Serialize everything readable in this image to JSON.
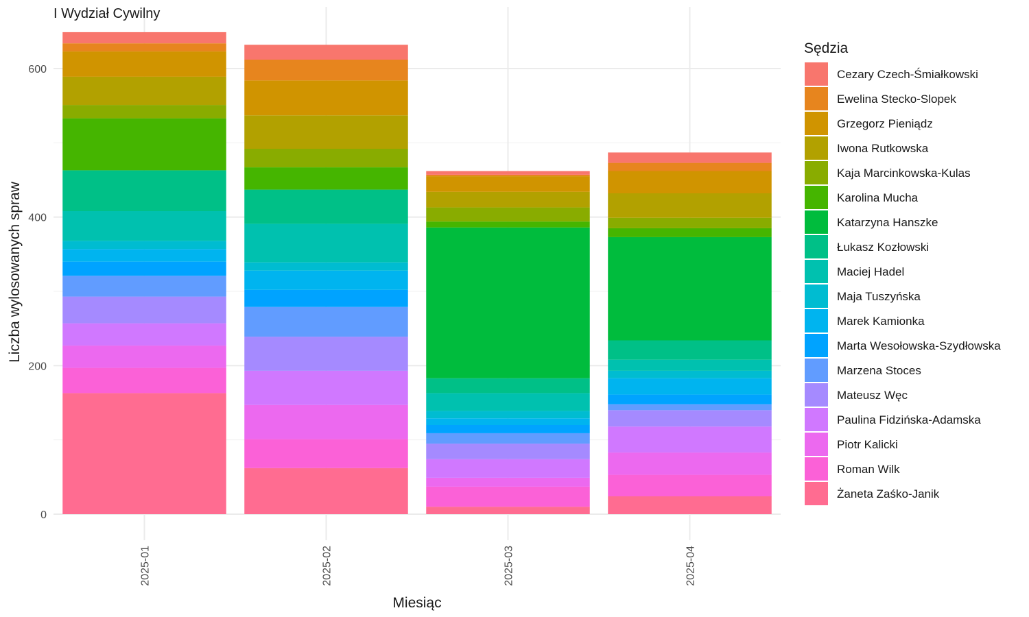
{
  "chart_data": {
    "type": "bar",
    "stacked": true,
    "title": "I Wydział Cywilny",
    "xlabel": "Miesiąc",
    "ylabel": "Liczba wylosowanych spraw",
    "ylim": [
      0,
      650
    ],
    "yticks": [
      0,
      200,
      400,
      600
    ],
    "grid": true,
    "legend_title": "Sędzia",
    "legend_position": "right",
    "categories": [
      "2025-01",
      "2025-02",
      "2025-03",
      "2025-04"
    ],
    "series": [
      {
        "name": "Cezary Czech-Śmiałkowski",
        "color": "#F8766D",
        "values": [
          15,
          20,
          5,
          14
        ]
      },
      {
        "name": "Ewelina Stecko-Slopek",
        "color": "#E7851E",
        "values": [
          11,
          28,
          2,
          11
        ]
      },
      {
        "name": "Grzegorz Pieniądz",
        "color": "#D09400",
        "values": [
          34,
          47,
          21,
          30
        ]
      },
      {
        "name": "Iwona Rutkowska",
        "color": "#B2A100",
        "values": [
          38,
          45,
          21,
          33
        ]
      },
      {
        "name": "Kaja Marcinkowska-Kulas",
        "color": "#89AC00",
        "values": [
          18,
          25,
          19,
          14
        ]
      },
      {
        "name": "Karolina Mucha",
        "color": "#45B500",
        "values": [
          70,
          30,
          8,
          12
        ]
      },
      {
        "name": "Katarzyna Hanszke",
        "color": "#00BC3D",
        "values": [
          0,
          0,
          203,
          139
        ]
      },
      {
        "name": "Łukasz Kozłowski",
        "color": "#00C087",
        "values": [
          55,
          46,
          20,
          26
        ]
      },
      {
        "name": "Maciej Hadel",
        "color": "#00C1AF",
        "values": [
          40,
          52,
          24,
          15
        ]
      },
      {
        "name": "Maja Tuszyńska",
        "color": "#00BCD1",
        "values": [
          11,
          11,
          10,
          10
        ]
      },
      {
        "name": "Marek Kamionka",
        "color": "#00B4EF",
        "values": [
          17,
          26,
          9,
          22
        ]
      },
      {
        "name": "Marta Wesołowska-Szydłowska",
        "color": "#00A3FF",
        "values": [
          19,
          23,
          11,
          13
        ]
      },
      {
        "name": "Marzena Stoces",
        "color": "#619CFF",
        "values": [
          28,
          40,
          14,
          8
        ]
      },
      {
        "name": "Mateusz Węc",
        "color": "#A58AFF",
        "values": [
          36,
          46,
          21,
          22
        ]
      },
      {
        "name": "Paulina Fidzińska-Adamska",
        "color": "#D078FF",
        "values": [
          30,
          46,
          25,
          35
        ]
      },
      {
        "name": "Piotr Kalicki",
        "color": "#EC69EF",
        "values": [
          30,
          46,
          12,
          30
        ]
      },
      {
        "name": "Roman Wilk",
        "color": "#FB61D7",
        "values": [
          34,
          39,
          27,
          29
        ]
      },
      {
        "name": "Żaneta Zaśko-Janik",
        "color": "#FF6C91",
        "values": [
          163,
          62,
          10,
          24
        ]
      }
    ]
  }
}
